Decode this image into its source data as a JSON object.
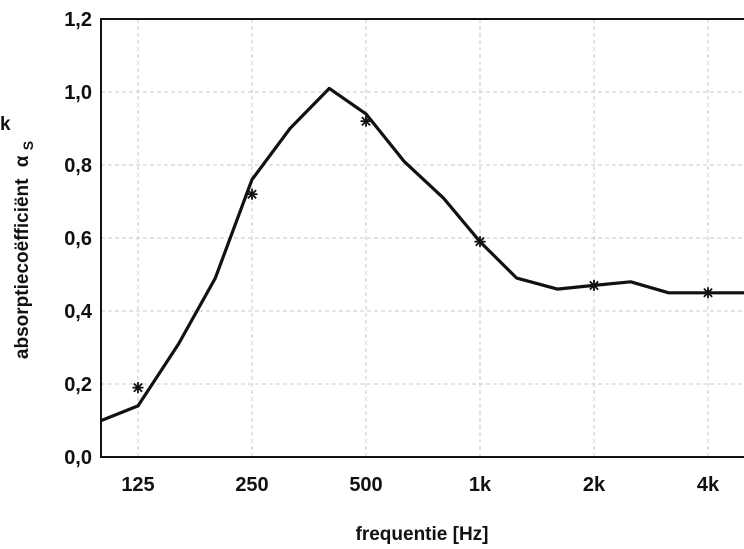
{
  "chart_data": {
    "type": "line",
    "xlabel": "frequentie [Hz]",
    "ylabel": "absorptiecoëfficiënt",
    "ylabel_symbol": "α",
    "ylabel_subscript": "S",
    "corner_mark": "k",
    "x_scale": "log2",
    "xlim": [
      90,
      5000
    ],
    "ylim": [
      0.0,
      1.2
    ],
    "x_ticks": [
      {
        "value": 125,
        "label": "125"
      },
      {
        "value": 250,
        "label": "250"
      },
      {
        "value": 500,
        "label": "500"
      },
      {
        "value": 1000,
        "label": "1k"
      },
      {
        "value": 2000,
        "label": "2k"
      },
      {
        "value": 4000,
        "label": "4k"
      }
    ],
    "y_ticks": [
      {
        "value": 0.0,
        "label": "0,0"
      },
      {
        "value": 0.2,
        "label": "0,2"
      },
      {
        "value": 0.4,
        "label": "0,4"
      },
      {
        "value": 0.6,
        "label": "0,6"
      },
      {
        "value": 0.8,
        "label": "0,8"
      },
      {
        "value": 1.0,
        "label": "1,0"
      },
      {
        "value": 1.2,
        "label": "1,2"
      }
    ],
    "grid": true,
    "series": [
      {
        "type": "line",
        "color": "#111111",
        "x": [
          100,
          125,
          160,
          200,
          250,
          315,
          400,
          500,
          630,
          800,
          1000,
          1250,
          1600,
          2000,
          2500,
          3150,
          4000,
          5000
        ],
        "y": [
          0.1,
          0.14,
          0.31,
          0.49,
          0.76,
          0.9,
          1.01,
          0.94,
          0.81,
          0.71,
          0.59,
          0.49,
          0.46,
          0.47,
          0.48,
          0.45,
          0.45,
          0.45
        ]
      },
      {
        "type": "scatter",
        "marker": "asterisk",
        "color": "#111111",
        "x": [
          125,
          250,
          500,
          1000,
          2000,
          4000
        ],
        "y": [
          0.19,
          0.72,
          0.92,
          0.59,
          0.47,
          0.45
        ]
      }
    ]
  }
}
